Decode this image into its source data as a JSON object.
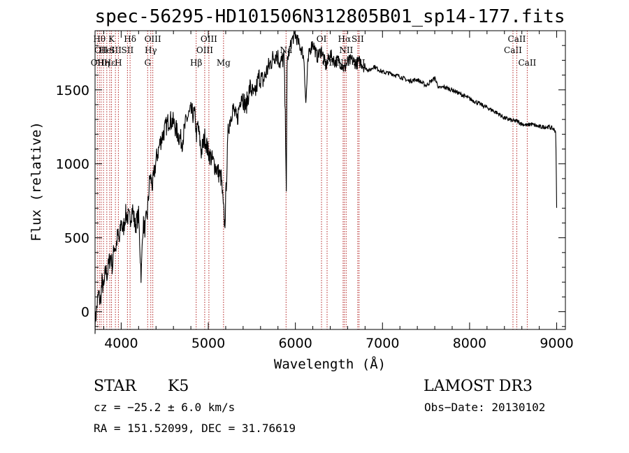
{
  "chart_data": {
    "type": "line",
    "title": "spec-56295-HD101506N312805B01_sp14-177.fits",
    "xlabel": "Wavelength (Å)",
    "ylabel": "Flux (relative)",
    "xlim": [
      3700,
      9100
    ],
    "ylim": [
      -120,
      1900
    ],
    "xticks": [
      4000,
      5000,
      6000,
      7000,
      8000,
      9000
    ],
    "yticks": [
      0,
      500,
      1000,
      1500
    ],
    "grid": false,
    "series": [
      {
        "name": "spectrum",
        "x": [
          3700,
          3720,
          3740,
          3760,
          3780,
          3800,
          3820,
          3840,
          3860,
          3880,
          3900,
          3920,
          3940,
          3960,
          3980,
          4000,
          4020,
          4050,
          4080,
          4100,
          4130,
          4160,
          4200,
          4230,
          4250,
          4270,
          4300,
          4330,
          4360,
          4400,
          4450,
          4500,
          4550,
          4600,
          4650,
          4700,
          4750,
          4800,
          4850,
          4861,
          4880,
          4920,
          4960,
          5000,
          5050,
          5100,
          5150,
          5172,
          5190,
          5230,
          5280,
          5330,
          5380,
          5430,
          5480,
          5530,
          5580,
          5630,
          5680,
          5730,
          5780,
          5830,
          5870,
          5890,
          5896,
          5905,
          5930,
          5960,
          6000,
          6040,
          6080,
          6100,
          6120,
          6140,
          6160,
          6200,
          6250,
          6300,
          6350,
          6400,
          6450,
          6500,
          6563,
          6600,
          6650,
          6700,
          6750,
          6800,
          6850,
          6900,
          7000,
          7100,
          7200,
          7300,
          7400,
          7500,
          7600,
          7650,
          7700,
          7800,
          7900,
          8000,
          8100,
          8200,
          8300,
          8400,
          8500,
          8542,
          8600,
          8662,
          8700,
          8800,
          8900,
          8950,
          8990,
          9000
        ],
        "y": [
          -80,
          30,
          120,
          60,
          200,
          150,
          280,
          250,
          330,
          380,
          300,
          450,
          430,
          520,
          470,
          620,
          540,
          660,
          640,
          620,
          700,
          580,
          650,
          230,
          600,
          560,
          660,
          920,
          850,
          1020,
          1150,
          1230,
          1300,
          1280,
          1200,
          1150,
          1300,
          1350,
          1320,
          1190,
          1260,
          1080,
          1180,
          1080,
          1020,
          960,
          900,
          700,
          580,
          1240,
          1380,
          1290,
          1480,
          1380,
          1520,
          1450,
          1590,
          1560,
          1640,
          1700,
          1750,
          1680,
          1720,
          1120,
          840,
          1700,
          1760,
          1840,
          1870,
          1810,
          1760,
          1700,
          1400,
          1650,
          1760,
          1820,
          1720,
          1770,
          1660,
          1740,
          1690,
          1700,
          1640,
          1690,
          1700,
          1680,
          1690,
          1650,
          1630,
          1660,
          1620,
          1610,
          1590,
          1560,
          1570,
          1530,
          1580,
          1510,
          1520,
          1500,
          1470,
          1440,
          1410,
          1380,
          1350,
          1310,
          1290,
          1290,
          1270,
          1260,
          1270,
          1250,
          1250,
          1240,
          1220,
          700
        ]
      }
    ],
    "spectral_lines": [
      {
        "x": 3727,
        "labels": [
          "OII"
        ],
        "row": 2
      },
      {
        "x": 3750,
        "labels": [
          "Hθ"
        ],
        "row": 0
      },
      {
        "x": 3770,
        "labels": [
          "OII"
        ],
        "row": 1
      },
      {
        "x": 3797,
        "labels": [
          "Hη"
        ],
        "row": 2
      },
      {
        "x": 3835,
        "labels": [
          "HeI"
        ],
        "row": 1
      },
      {
        "x": 3869,
        "labels": [
          "Hε"
        ],
        "row": 2
      },
      {
        "x": 3889,
        "labels": [
          "K"
        ],
        "row": 0
      },
      {
        "x": 3934,
        "labels": [
          "SII"
        ],
        "row": 1
      },
      {
        "x": 3968,
        "labels": [
          "H"
        ],
        "row": 2
      },
      {
        "x": 4102,
        "labels": [
          "Hδ"
        ],
        "row": 0
      },
      {
        "x": 4072,
        "labels": [
          "SII"
        ],
        "row": 1
      },
      {
        "x": 4304,
        "labels": [
          "G"
        ],
        "row": 2
      },
      {
        "x": 4340,
        "labels": [
          "Hγ"
        ],
        "row": 1
      },
      {
        "x": 4363,
        "labels": [
          "OIII"
        ],
        "row": 0
      },
      {
        "x": 4861,
        "labels": [
          "Hβ"
        ],
        "row": 2
      },
      {
        "x": 4959,
        "labels": [
          "OIII"
        ],
        "row": 1
      },
      {
        "x": 5007,
        "labels": [
          "OIII"
        ],
        "row": 0
      },
      {
        "x": 5175,
        "labels": [
          "Mg"
        ],
        "row": 2
      },
      {
        "x": 5893,
        "labels": [
          "Na"
        ],
        "row": 1
      },
      {
        "x": 6300,
        "labels": [
          "OI"
        ],
        "row": 0
      },
      {
        "x": 6364,
        "labels": [
          "OI"
        ],
        "row": 2
      },
      {
        "x": 6548,
        "labels": [
          "NII"
        ],
        "row": 2
      },
      {
        "x": 6563,
        "labels": [
          "Hα"
        ],
        "row": 0
      },
      {
        "x": 6583,
        "labels": [
          "NII"
        ],
        "row": 1
      },
      {
        "x": 6716,
        "labels": [
          "SII"
        ],
        "row": 0
      },
      {
        "x": 6731,
        "labels": [
          "SII"
        ],
        "row": 2
      },
      {
        "x": 8498,
        "labels": [
          "CaII"
        ],
        "row": 1
      },
      {
        "x": 8542,
        "labels": [
          "CaII"
        ],
        "row": 0
      },
      {
        "x": 8662,
        "labels": [
          "CaII"
        ],
        "row": 2
      }
    ],
    "line_color": "#b22222"
  },
  "info": {
    "object_class": "STAR",
    "subclass": "K5",
    "survey": "LAMOST DR3",
    "cz": "cz = −25.2 ± 6.0 km/s",
    "obs_date": "Obs−Date: 20130102",
    "coords": "RA = 151.52099, DEC =  31.76619"
  }
}
